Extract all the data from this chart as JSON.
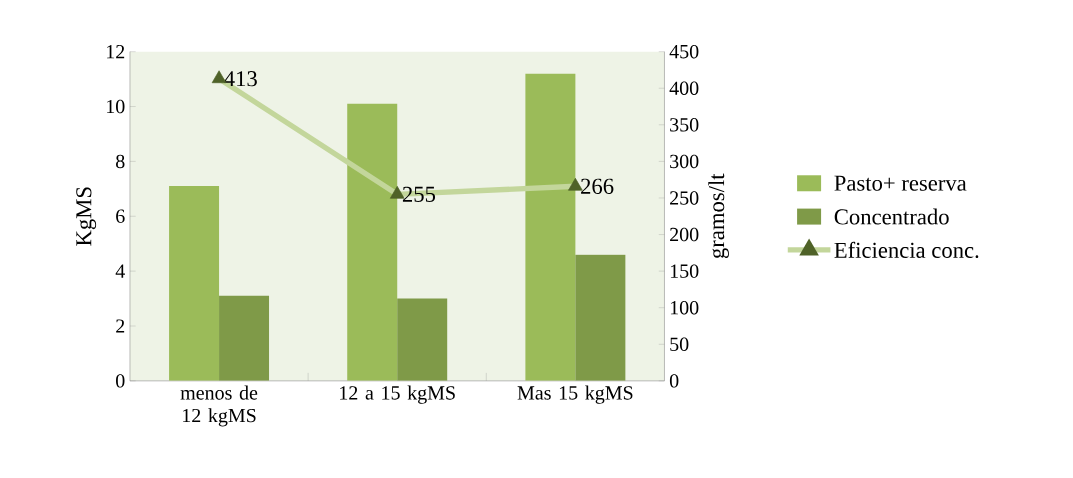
{
  "chart_data": {
    "type": "bar",
    "ylabel": "KgMS",
    "y2label": "gramos/lt",
    "categories": [
      "menos de 12 kgMS",
      "12 a 15 kgMS",
      "Mas 15 kgMS"
    ],
    "series": [
      {
        "name": "Pasto+ reserva",
        "color": "#9bbb59",
        "values": [
          7.1,
          10.1,
          11.2
        ]
      },
      {
        "name": "Concentrado",
        "color": "#7f9a48",
        "values": [
          3.1,
          3.0,
          4.6
        ]
      },
      {
        "name": "Eficiencia conc.",
        "type": "line",
        "axis": "y2",
        "color": "#c3d69b",
        "marker": "triangle",
        "values": [
          413,
          255,
          266
        ],
        "value_labels": [
          "413",
          "255",
          "266"
        ]
      }
    ],
    "ylim": [
      0,
      12
    ],
    "yticks": [
      0,
      2,
      4,
      6,
      8,
      10,
      12
    ],
    "y2lim": [
      0,
      450
    ],
    "y2ticks": [
      0,
      50,
      100,
      150,
      200,
      250,
      300,
      350,
      400,
      450
    ],
    "legend": "right"
  }
}
